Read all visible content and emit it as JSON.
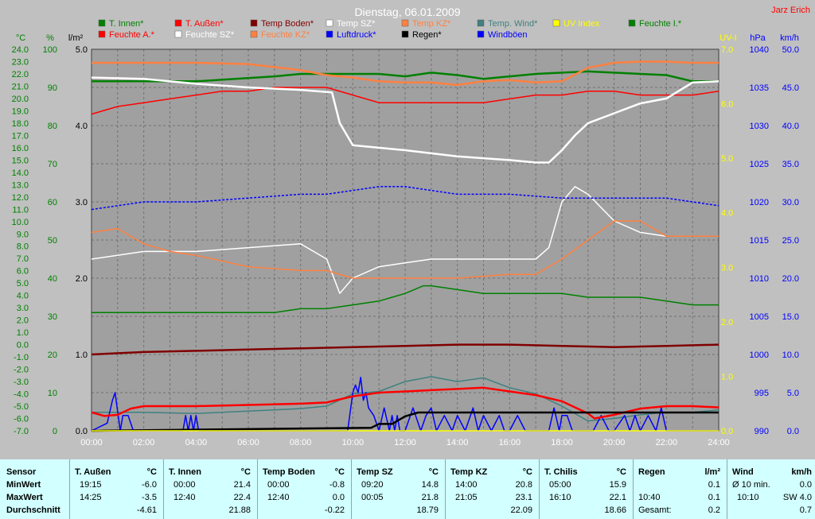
{
  "title": "Dienstag, 06.01.2009",
  "author": "Jarz Erich",
  "axes": {
    "temp_unit": "°C",
    "hum_unit": "%",
    "rain_unit": "l/m²",
    "uv_unit": "UV-I",
    "press_unit": "hPa",
    "wind_unit": "km/h",
    "temp_ticks": [
      "24.0",
      "23.0",
      "22.0",
      "21.0",
      "20.0",
      "19.0",
      "18.0",
      "17.0",
      "16.0",
      "15.0",
      "14.0",
      "13.0",
      "12.0",
      "11.0",
      "10.0",
      "9.0",
      "8.0",
      "7.0",
      "6.0",
      "5.0",
      "4.0",
      "3.0",
      "2.0",
      "1.0",
      "0.0",
      "-1.0",
      "-2.0",
      "-3.0",
      "-4.0",
      "-5.0",
      "-6.0",
      "-7.0"
    ],
    "hum_ticks": [
      "100",
      "90",
      "80",
      "70",
      "60",
      "50",
      "40",
      "30",
      "20",
      "10",
      "0"
    ],
    "rain_ticks": [
      "5.0",
      "4.0",
      "3.0",
      "2.0",
      "1.0",
      "0.0"
    ],
    "uv_ticks": [
      "7.0",
      "6.0",
      "5.0",
      "4.0",
      "3.0",
      "2.0",
      "1.0",
      "0.0"
    ],
    "press_ticks": [
      "1040",
      "1035",
      "1030",
      "1025",
      "1020",
      "1015",
      "1010",
      "1005",
      "1000",
      "995",
      "990"
    ],
    "wind_ticks": [
      "50.0",
      "45.0",
      "40.0",
      "35.0",
      "30.0",
      "25.0",
      "20.0",
      "15.0",
      "10.0",
      "5.0",
      "0.0"
    ],
    "x_ticks": [
      "00:00",
      "02:00",
      "04:00",
      "06:00",
      "08:00",
      "10:00",
      "12:00",
      "14:00",
      "16:00",
      "18:00",
      "20:00",
      "22:00",
      "24:00"
    ]
  },
  "legend": [
    {
      "label": "T. Innen*",
      "color": "#008000"
    },
    {
      "label": "T. Außen*",
      "color": "#ff0000"
    },
    {
      "label": "Temp Boden*",
      "color": "#800000"
    },
    {
      "label": "Temp SZ*",
      "color": "#ffffff"
    },
    {
      "label": "Temp KZ*",
      "color": "#ff8040"
    },
    {
      "label": "Temp. Wind*",
      "color": "#408080"
    },
    {
      "label": "UV Index",
      "color": "#ffff00"
    },
    {
      "label": "Feuchte I.*",
      "color": "#008000"
    },
    {
      "label": "Feuchte A.*",
      "color": "#ff0000"
    },
    {
      "label": "Feuchte SZ*",
      "color": "#ffffff"
    },
    {
      "label": "Feuchte KZ*",
      "color": "#ff8040"
    },
    {
      "label": "Luftdruck*",
      "color": "#0000ff"
    },
    {
      "label": "Regen*",
      "color": "#000000"
    },
    {
      "label": "Windböen",
      "color": "#0000ff"
    }
  ],
  "chart_data": {
    "type": "line",
    "title": "Dienstag, 06.01.2009",
    "x_range": [
      0,
      24
    ],
    "temp_range": [
      -7,
      24
    ],
    "humidity_range": [
      0,
      100
    ],
    "rain_range": [
      0,
      5
    ],
    "uv_range": [
      0,
      7
    ],
    "pressure_range": [
      990,
      1040
    ],
    "wind_range": [
      0,
      50
    ],
    "grid": true,
    "series": [
      {
        "name": "T. Innen*",
        "axis": "temp",
        "color": "#008000",
        "x": [
          0,
          4,
          7,
          8,
          9,
          10,
          11,
          12,
          13,
          14,
          15,
          16,
          17,
          18,
          19,
          20,
          21,
          22,
          23,
          24
        ],
        "y": [
          21.4,
          21.4,
          21.8,
          22.0,
          22.0,
          22.0,
          22.0,
          21.8,
          22.1,
          21.9,
          21.6,
          21.8,
          22.0,
          22.1,
          22.2,
          22.1,
          22.0,
          21.9,
          21.4,
          21.4
        ]
      },
      {
        "name": "Feuchte I.*",
        "axis": "hum",
        "color": "#008000",
        "x": [
          0,
          3,
          7,
          8,
          9,
          10,
          11,
          11.5,
          12,
          12.7,
          13,
          14,
          15,
          16,
          17,
          18,
          19,
          20,
          21,
          22,
          23,
          24
        ],
        "y": [
          31,
          31,
          31,
          32,
          32,
          33,
          34,
          35,
          36,
          38,
          38,
          37,
          36,
          36,
          36,
          36,
          35,
          35,
          35,
          34,
          33,
          33
        ]
      },
      {
        "name": "Feuchte A.*",
        "axis": "hum",
        "color": "#ff0000",
        "x": [
          0,
          1,
          2,
          3,
          4,
          5,
          6,
          7,
          8,
          9,
          10,
          11,
          12,
          13,
          14,
          15,
          16,
          17,
          18,
          19,
          20,
          21,
          22,
          23,
          24
        ],
        "y": [
          83,
          85,
          86,
          87,
          88,
          89,
          89,
          90,
          90,
          90,
          88,
          86,
          86,
          86,
          86,
          86,
          87,
          88,
          88,
          89,
          89,
          88,
          88,
          88,
          89
        ]
      },
      {
        "name": "Temp Boden*",
        "axis": "temp",
        "color": "#800000",
        "x": [
          0,
          2,
          4,
          6,
          8,
          10,
          12,
          14,
          16,
          18,
          20,
          22,
          24
        ],
        "y": [
          -0.8,
          -0.6,
          -0.5,
          -0.4,
          -0.3,
          -0.2,
          -0.1,
          0.0,
          0.0,
          -0.1,
          -0.2,
          -0.1,
          0.0
        ]
      },
      {
        "name": "Temp SZ*",
        "axis": "temp",
        "color": "#ffffff",
        "x": [
          0,
          2,
          4,
          6,
          8,
          9.2,
          9.5,
          10,
          11,
          12,
          14,
          16,
          17,
          17.5,
          18,
          18.5,
          19,
          20,
          21,
          22,
          23,
          24
        ],
        "y": [
          21.7,
          21.6,
          21.2,
          20.9,
          20.7,
          20.5,
          18.0,
          16.2,
          16.0,
          15.8,
          15.3,
          15.0,
          14.8,
          14.8,
          15.8,
          17.0,
          18.0,
          18.8,
          19.6,
          20.0,
          21.3,
          21.4
        ]
      },
      {
        "name": "Feuchte SZ*",
        "axis": "hum",
        "color": "#ffffff",
        "x": [
          0,
          2,
          4,
          6,
          8,
          9,
          9.5,
          10,
          11,
          12,
          13,
          14,
          16,
          17,
          17.5,
          18,
          18.5,
          19,
          20,
          21,
          22,
          23,
          24
        ],
        "y": [
          45,
          47,
          47,
          48,
          49,
          45,
          36,
          40,
          43,
          44,
          45,
          45,
          45,
          45,
          48,
          60,
          64,
          62,
          55,
          52,
          51,
          51,
          51
        ]
      },
      {
        "name": "Temp KZ*",
        "axis": "temp",
        "color": "#ff8040",
        "x": [
          0,
          2,
          4,
          6,
          8,
          9,
          10,
          11,
          12,
          13,
          14,
          15,
          16,
          17,
          18,
          19,
          20,
          21,
          22,
          23,
          24
        ],
        "y": [
          22.9,
          22.9,
          22.9,
          22.8,
          22.3,
          21.9,
          21.7,
          21.4,
          21.3,
          21.3,
          21.1,
          21.4,
          21.5,
          21.3,
          21.4,
          22.5,
          22.9,
          23.0,
          23.0,
          22.9,
          22.9
        ]
      },
      {
        "name": "Feuchte KZ*",
        "axis": "hum",
        "color": "#ff8040",
        "x": [
          0,
          1,
          2,
          3,
          4,
          6,
          8,
          9,
          10,
          12,
          14,
          16,
          17,
          18,
          19,
          20,
          21,
          22,
          23,
          24
        ],
        "y": [
          52,
          53,
          49,
          47,
          46,
          43,
          42,
          42,
          40,
          40,
          40,
          41,
          41,
          45,
          50,
          55,
          55,
          51,
          51,
          51
        ]
      },
      {
        "name": "Temp. Wind*",
        "axis": "temp",
        "color": "#408080",
        "x": [
          0,
          2,
          4,
          6,
          8,
          9,
          10,
          11,
          12,
          13,
          14,
          15,
          16,
          17,
          18,
          19,
          20,
          21,
          22,
          23,
          24
        ],
        "y": [
          -5.5,
          -5.5,
          -5.6,
          -5.4,
          -5.2,
          -5.0,
          -4.0,
          -3.8,
          -3.0,
          -2.6,
          -3.0,
          -2.7,
          -3.5,
          -4.0,
          -5.0,
          -6.2,
          -6.0,
          -5.7,
          -5.5,
          -5.5,
          -5.3
        ]
      },
      {
        "name": "T. Außen*",
        "axis": "temp",
        "color": "#ff0000",
        "x": [
          0,
          0.5,
          1,
          1.5,
          2,
          4,
          6,
          8,
          9,
          10,
          11,
          12,
          13,
          14,
          15,
          16,
          17,
          18,
          19,
          19.25,
          20,
          21,
          22,
          23,
          24
        ],
        "y": [
          -5.5,
          -5.8,
          -5.7,
          -5.2,
          -5.0,
          -5.0,
          -4.9,
          -4.8,
          -4.7,
          -4.2,
          -3.9,
          -3.8,
          -3.7,
          -3.6,
          -3.5,
          -3.8,
          -4.1,
          -4.6,
          -5.6,
          -6.0,
          -5.7,
          -5.2,
          -5.0,
          -5.0,
          -5.1
        ]
      },
      {
        "name": "Luftdruck*",
        "axis": "press",
        "color": "#0000ff",
        "x": [
          0,
          2,
          4,
          6,
          8,
          9,
          10,
          11,
          12,
          13,
          14,
          16,
          18,
          20,
          22,
          24
        ],
        "y": [
          1019,
          1020,
          1020,
          1020.5,
          1021,
          1021,
          1021.5,
          1022,
          1022,
          1021.5,
          1021,
          1021,
          1020.5,
          1020.5,
          1020.5,
          1019.5
        ]
      },
      {
        "name": "Regen*",
        "axis": "rain",
        "color": "#000000",
        "x": [
          0,
          10.7,
          11,
          11.5,
          12,
          12.5,
          13,
          14,
          16,
          18,
          20,
          22,
          24
        ],
        "y": [
          0,
          0.04,
          0.09,
          0.09,
          0.19,
          0.24,
          0.24,
          0.24,
          0.24,
          0.24,
          0.24,
          0.24,
          0.24
        ]
      },
      {
        "name": "Windböen",
        "axis": "wind",
        "color": "#0000ff",
        "x": [
          0,
          0.6,
          0.8,
          0.9,
          1.1,
          1.2,
          1.4,
          1.6,
          1.8,
          2.0,
          3.5,
          3.6,
          3.7,
          3.8,
          3.9,
          4.0,
          4.1,
          9.8,
          10,
          10.1,
          10.2,
          10.3,
          10.4,
          10.5,
          10.6,
          10.8,
          11,
          11.2,
          11.4,
          11.5,
          11.6,
          11.7,
          11.8,
          12,
          12.3,
          12.6,
          12.8,
          13,
          13.2,
          13.5,
          13.8,
          14,
          14.3,
          14.6,
          14.8,
          15,
          15.3,
          15.6,
          15.8,
          16,
          16.3,
          16.6,
          17.5,
          17.7,
          17.9,
          18,
          18.2,
          18.4,
          19,
          19.2,
          19.5,
          19.8,
          20,
          20.4,
          20.6,
          20.8,
          21,
          21.3,
          21.6,
          21.8,
          22,
          22.2,
          23,
          24
        ],
        "y": [
          0,
          1,
          4,
          5,
          0,
          2,
          2,
          0,
          0,
          0,
          0,
          2,
          0,
          2,
          0,
          2,
          0,
          0,
          5,
          6,
          5,
          7,
          4,
          5,
          3,
          2,
          0,
          3,
          0,
          2,
          0,
          2,
          0,
          0,
          3,
          0,
          2,
          3,
          0,
          2,
          0,
          2,
          0,
          3,
          0,
          2,
          0,
          2,
          0,
          0,
          2,
          0,
          0,
          3,
          0,
          2,
          2,
          0,
          0,
          0,
          2,
          0,
          0,
          2,
          0,
          2,
          0,
          2,
          0,
          3,
          0,
          0,
          0,
          0
        ]
      },
      {
        "name": "UV Index",
        "axis": "uv",
        "color": "#ffff00",
        "x": [
          0,
          24
        ],
        "y": [
          0,
          0
        ]
      }
    ]
  },
  "stats": {
    "row_labels": [
      "Sensor",
      "MinWert",
      "MaxWert",
      "Durchschnitt"
    ],
    "columns": [
      {
        "name": "T. Außen",
        "unit": "°C",
        "min_time": "19:15",
        "min": "-6.0",
        "max_time": "14:25",
        "max": "-3.5",
        "avg": "-4.61"
      },
      {
        "name": "T. Innen",
        "unit": "°C",
        "min_time": "00:00",
        "min": "21.4",
        "max_time": "12:40",
        "max": "22.4",
        "avg": "21.88"
      },
      {
        "name": "Temp Boden",
        "unit": "°C",
        "min_time": "00:00",
        "min": "-0.8",
        "max_time": "12:40",
        "max": "0.0",
        "avg": "-0.22"
      },
      {
        "name": "Temp SZ",
        "unit": "°C",
        "min_time": "09:20",
        "min": "14.8",
        "max_time": "00:05",
        "max": "21.8",
        "avg": "18.79"
      },
      {
        "name": "Temp KZ",
        "unit": "°C",
        "min_time": "14:00",
        "min": "20.8",
        "max_time": "21:05",
        "max": "23.1",
        "avg": "22.09"
      },
      {
        "name": "T. Chilis",
        "unit": "°C",
        "min_time": "05:00",
        "min": "15.9",
        "max_time": "16:10",
        "max": "22.1",
        "avg": "18.66"
      }
    ],
    "rain": {
      "name": "Regen",
      "unit": "l/m²",
      "row1_value": "0.1",
      "row2_time": "10:40",
      "row2_value": "0.1",
      "total_label": "Gesamt:",
      "total": "0.2"
    },
    "wind": {
      "name": "Wind",
      "unit": "km/h",
      "row1_label": "Ø 10 min.",
      "row1_value": "0.0",
      "row2_time": "10:10",
      "row2_value": "SW 4.0",
      "row3_value": "0.7"
    }
  }
}
